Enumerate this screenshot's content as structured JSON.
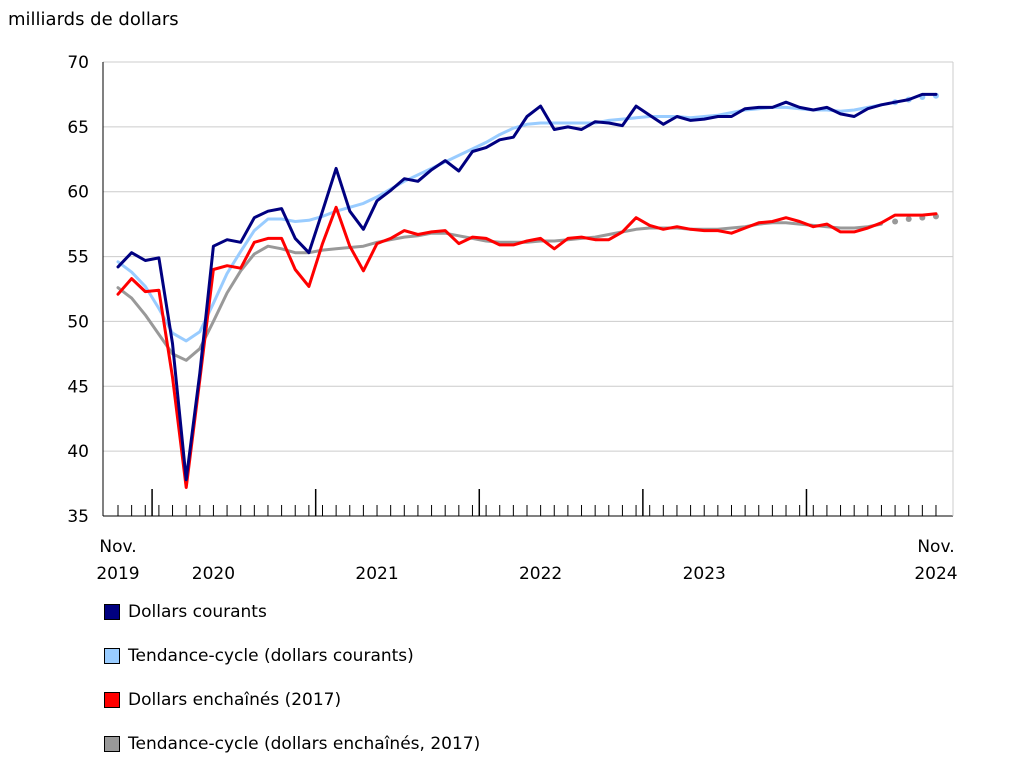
{
  "chart_data": {
    "type": "line",
    "ylabel": "milliards de dollars",
    "ylim": [
      35,
      70
    ],
    "yticks": [
      35,
      40,
      45,
      50,
      55,
      60,
      65,
      70
    ],
    "x_start": "2019-11",
    "x_end": "2024-11",
    "xtick_labels": [
      {
        "label": "Nov.",
        "sub": "2019",
        "month": 0
      },
      {
        "label": "",
        "sub": "2020",
        "month": 7
      },
      {
        "label": "",
        "sub": "2021",
        "month": 19
      },
      {
        "label": "",
        "sub": "2022",
        "month": 31
      },
      {
        "label": "",
        "sub": "2023",
        "month": 43
      },
      {
        "label": "Nov.",
        "sub": "2024",
        "month": 60
      }
    ],
    "year_boundaries": [
      2.5,
      14.5,
      26.5,
      38.5,
      50.5
    ],
    "series": [
      {
        "name": "Dollars courants",
        "color": "#000080",
        "style": "solid",
        "values": [
          54.2,
          55.3,
          54.7,
          54.9,
          48.3,
          37.8,
          46.0,
          55.8,
          56.3,
          56.1,
          58.0,
          58.5,
          58.7,
          56.4,
          55.3,
          58.5,
          61.8,
          58.5,
          57.1,
          59.3,
          60.1,
          61.0,
          60.8,
          61.7,
          62.4,
          61.6,
          63.1,
          63.4,
          64.0,
          64.2,
          65.8,
          66.6,
          64.8,
          65.0,
          64.8,
          65.4,
          65.3,
          65.1,
          66.6,
          65.9,
          65.2,
          65.8,
          65.5,
          65.6,
          65.8,
          65.8,
          66.4,
          66.5,
          66.5,
          66.9,
          66.5,
          66.3,
          66.5,
          66.0,
          65.8,
          66.4,
          66.7,
          66.9,
          67.1,
          67.5,
          67.5
        ]
      },
      {
        "name": "Tendance-cycle (dollars courants)",
        "color": "#99ccff",
        "style": "solid",
        "dotted_last": 4,
        "values": [
          54.6,
          53.8,
          52.7,
          51.0,
          49.1,
          48.5,
          49.2,
          51.4,
          53.7,
          55.4,
          57.0,
          57.9,
          57.9,
          57.7,
          57.8,
          58.1,
          58.5,
          58.8,
          59.1,
          59.6,
          60.2,
          60.8,
          61.3,
          61.8,
          62.3,
          62.8,
          63.3,
          63.8,
          64.4,
          64.9,
          65.2,
          65.3,
          65.3,
          65.3,
          65.3,
          65.3,
          65.5,
          65.6,
          65.7,
          65.8,
          65.8,
          65.8,
          65.7,
          65.8,
          65.9,
          66.1,
          66.3,
          66.4,
          66.5,
          66.5,
          66.4,
          66.3,
          66.3,
          66.2,
          66.3,
          66.5,
          66.7,
          66.9,
          67.1,
          67.3,
          67.4
        ]
      },
      {
        "name": "Dollars enchaînés (2017)",
        "color": "#ff0000",
        "style": "solid",
        "values": [
          52.1,
          53.3,
          52.3,
          52.4,
          45.7,
          37.2,
          45.5,
          54.0,
          54.3,
          54.1,
          56.1,
          56.4,
          56.4,
          54.0,
          52.7,
          56.0,
          58.8,
          55.8,
          53.9,
          56.0,
          56.4,
          57.0,
          56.7,
          56.9,
          57.0,
          56.0,
          56.5,
          56.4,
          55.9,
          55.9,
          56.2,
          56.4,
          55.6,
          56.4,
          56.5,
          56.3,
          56.3,
          56.9,
          58.0,
          57.4,
          57.1,
          57.3,
          57.1,
          57.0,
          57.0,
          56.8,
          57.2,
          57.6,
          57.7,
          58.0,
          57.7,
          57.3,
          57.5,
          56.9,
          56.9,
          57.2,
          57.6,
          58.2,
          58.2,
          58.2,
          58.3
        ]
      },
      {
        "name": "Tendance-cycle (dollars enchaînés, 2017)",
        "color": "#999999",
        "style": "solid",
        "dotted_last": 4,
        "values": [
          52.6,
          51.8,
          50.5,
          49.0,
          47.5,
          47.0,
          47.9,
          50.0,
          52.2,
          53.9,
          55.2,
          55.8,
          55.6,
          55.3,
          55.3,
          55.5,
          55.6,
          55.7,
          55.8,
          56.1,
          56.3,
          56.5,
          56.6,
          56.8,
          56.8,
          56.6,
          56.4,
          56.2,
          56.1,
          56.1,
          56.1,
          56.2,
          56.2,
          56.3,
          56.4,
          56.5,
          56.7,
          56.9,
          57.1,
          57.2,
          57.2,
          57.2,
          57.1,
          57.1,
          57.1,
          57.2,
          57.3,
          57.5,
          57.6,
          57.6,
          57.5,
          57.4,
          57.3,
          57.2,
          57.2,
          57.3,
          57.5,
          57.7,
          57.9,
          58.0,
          58.1
        ]
      }
    ]
  }
}
